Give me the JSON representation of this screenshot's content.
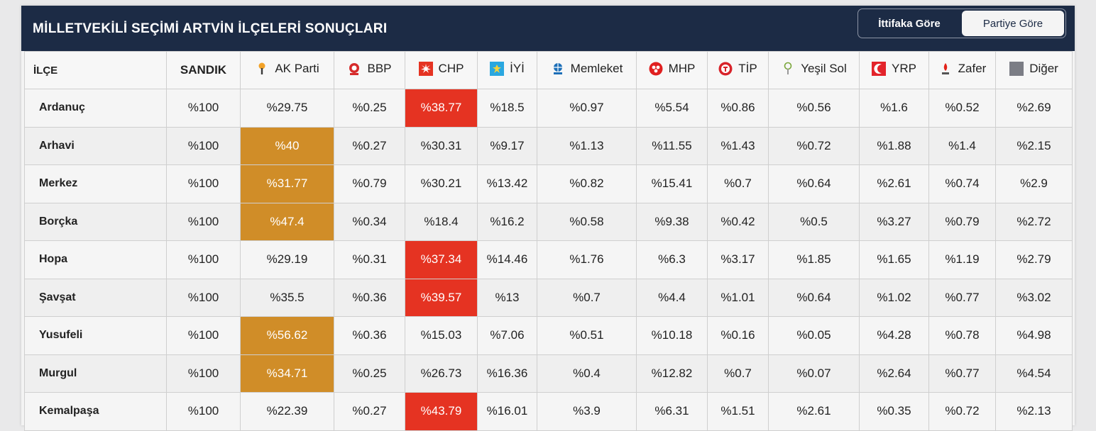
{
  "title": "MİLLETVEKİLİ SEÇİMİ ARTVİN İLÇELERİ SONUÇLARI",
  "toggle": {
    "alliance": "İttifaka Göre",
    "party": "Partiye Göre",
    "active": "party"
  },
  "columns": {
    "district": "İLÇE",
    "ballot": "SANDIK",
    "parties": [
      {
        "label": "AK Parti",
        "icon": "ak-parti-logo-icon",
        "color": "#f2a227"
      },
      {
        "label": "BBP",
        "icon": "bbp-logo-icon",
        "color": "#d62b2b"
      },
      {
        "label": "CHP",
        "icon": "chp-logo-icon",
        "color": "#e53322"
      },
      {
        "label": "İYİ",
        "icon": "iyi-logo-icon",
        "color": "#2aa7e0"
      },
      {
        "label": "Memleket",
        "icon": "memleket-logo-icon",
        "color": "#1d6fb8"
      },
      {
        "label": "MHP",
        "icon": "mhp-logo-icon",
        "color": "#e02020"
      },
      {
        "label": "TİP",
        "icon": "tip-logo-icon",
        "color": "#d8232a"
      },
      {
        "label": "Yeşil Sol",
        "icon": "yesil-sol-logo-icon",
        "color": "#7aa63a"
      },
      {
        "label": "YRP",
        "icon": "yrp-logo-icon",
        "color": "#e3242b"
      },
      {
        "label": "Zafer",
        "icon": "zafer-logo-icon",
        "color": "#e2231a"
      },
      {
        "label": "Diğer",
        "icon": "diger-logo-icon",
        "color": "#7b7d85"
      }
    ]
  },
  "colors": {
    "header": "#1c2b45",
    "ak_win": "#d08d28",
    "chp_win": "#e53322"
  },
  "rows": [
    {
      "district": "Ardanuç",
      "ballot": "%100",
      "values": [
        "%29.75",
        "%0.25",
        "%38.77",
        "%18.5",
        "%0.97",
        "%5.54",
        "%0.86",
        "%0.56",
        "%1.6",
        "%0.52",
        "%2.69"
      ],
      "winner": 2
    },
    {
      "district": "Arhavi",
      "ballot": "%100",
      "values": [
        "%40",
        "%0.27",
        "%30.31",
        "%9.17",
        "%1.13",
        "%11.55",
        "%1.43",
        "%0.72",
        "%1.88",
        "%1.4",
        "%2.15"
      ],
      "winner": 0
    },
    {
      "district": "Merkez",
      "ballot": "%100",
      "values": [
        "%31.77",
        "%0.79",
        "%30.21",
        "%13.42",
        "%0.82",
        "%15.41",
        "%0.7",
        "%0.64",
        "%2.61",
        "%0.74",
        "%2.9"
      ],
      "winner": 0
    },
    {
      "district": "Borçka",
      "ballot": "%100",
      "values": [
        "%47.4",
        "%0.34",
        "%18.4",
        "%16.2",
        "%0.58",
        "%9.38",
        "%0.42",
        "%0.5",
        "%3.27",
        "%0.79",
        "%2.72"
      ],
      "winner": 0
    },
    {
      "district": "Hopa",
      "ballot": "%100",
      "values": [
        "%29.19",
        "%0.31",
        "%37.34",
        "%14.46",
        "%1.76",
        "%6.3",
        "%3.17",
        "%1.85",
        "%1.65",
        "%1.19",
        "%2.79"
      ],
      "winner": 2
    },
    {
      "district": "Şavşat",
      "ballot": "%100",
      "values": [
        "%35.5",
        "%0.36",
        "%39.57",
        "%13",
        "%0.7",
        "%4.4",
        "%1.01",
        "%0.64",
        "%1.02",
        "%0.77",
        "%3.02"
      ],
      "winner": 2
    },
    {
      "district": "Yusufeli",
      "ballot": "%100",
      "values": [
        "%56.62",
        "%0.36",
        "%15.03",
        "%7.06",
        "%0.51",
        "%10.18",
        "%0.16",
        "%0.05",
        "%4.28",
        "%0.78",
        "%4.98"
      ],
      "winner": 0
    },
    {
      "district": "Murgul",
      "ballot": "%100",
      "values": [
        "%34.71",
        "%0.25",
        "%26.73",
        "%16.36",
        "%0.4",
        "%12.82",
        "%0.7",
        "%0.07",
        "%2.64",
        "%0.77",
        "%4.54"
      ],
      "winner": 0
    },
    {
      "district": "Kemalpaşa",
      "ballot": "%100",
      "values": [
        "%22.39",
        "%0.27",
        "%43.79",
        "%16.01",
        "%3.9",
        "%6.31",
        "%1.51",
        "%2.61",
        "%0.35",
        "%0.72",
        "%2.13"
      ],
      "winner": 2
    }
  ]
}
